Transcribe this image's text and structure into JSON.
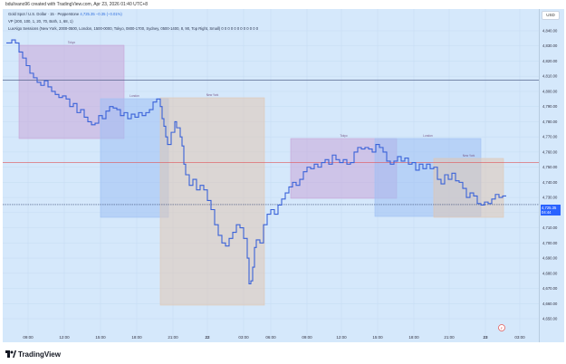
{
  "header": {
    "text": "bdulivano96 created with TradingView.com, Apr 23, 2026 01:40 UTC+8"
  },
  "legend": {
    "line1_label": "Gold Spot / U.S. Dollar · 15 · Pepperstone",
    "line1_values": "4,725.35 −0.35 (−0.01%)",
    "line2": "VP (200, 100, 1, 20, 70, Both, 1, 68, 1)",
    "line3": "LuxAlgo  Sessions (New York, 2000-0500, London, 1500-0000, Tokyo, 0800-1700, Sydney, 0500-1400, 8, 90, Top Right, Small)  0  0  0  0  0  0  0  0  0  0  0  0"
  },
  "sessions": [
    {
      "label": "Tokyo",
      "color": "#c9a6d8"
    },
    {
      "label": "London",
      "color": "#9ec0f4"
    },
    {
      "label": "New York",
      "color": "#e0c7b4"
    },
    {
      "label": "Tokyo",
      "color": "#c9a6d8"
    },
    {
      "label": "London",
      "color": "#9ec0f4"
    },
    {
      "label": "New York",
      "color": "#e0c7b4"
    }
  ],
  "price_axis": {
    "currency": "USD",
    "ticks": [
      "4,840.00",
      "4,830.00",
      "4,820.00",
      "4,810.00",
      "4,800.00",
      "4,790.00",
      "4,780.00",
      "4,770.00",
      "4,760.00",
      "4,750.00",
      "4,740.00",
      "4,730.00",
      "4,720.00",
      "4,710.00",
      "4,700.00",
      "4,690.00",
      "4,680.00",
      "4,670.00",
      "4,660.00",
      "4,650.00"
    ],
    "last_price": "4,725.35",
    "countdown": "04:44"
  },
  "time_axis": {
    "ticks": [
      "09:00",
      "12:00",
      "15:00",
      "18:00",
      "21:00",
      "22",
      "03:00",
      "06:00",
      "09:00",
      "12:00",
      "15:00",
      "18:00",
      "21:00",
      "23",
      "03:00"
    ]
  },
  "footer": {
    "brand": "TradingView"
  },
  "colors": {
    "price_line": "#3a62d8",
    "last_price_bg": "#2962ff",
    "red_line": "#e0565a"
  }
}
